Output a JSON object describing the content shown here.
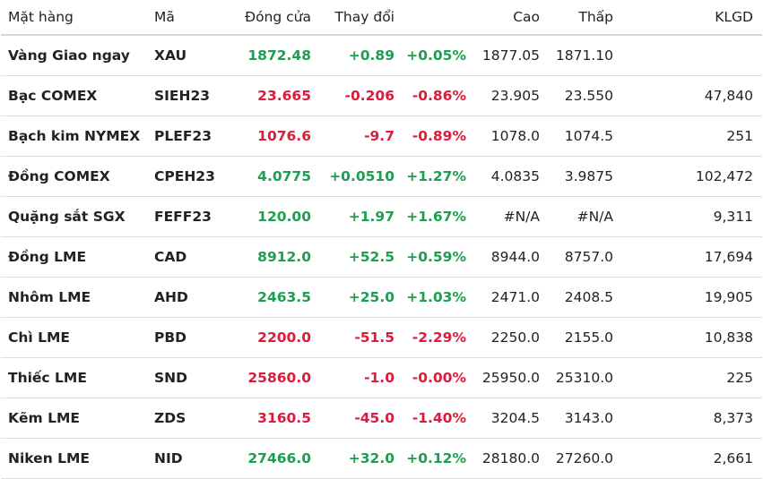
{
  "colors": {
    "up": "#1e9e50",
    "down": "#dc1c3a",
    "text": "#222222"
  },
  "headers": [
    "Mặt hàng",
    "Mã",
    "Đóng cửa",
    "Thay đổi",
    "",
    "Cao",
    "Thấp",
    "KLGD"
  ],
  "rows": [
    {
      "name": "Vàng Giao ngay",
      "code": "XAU",
      "close": "1872.48",
      "change": "+0.89",
      "pct": "+0.05%",
      "high": "1877.05",
      "low": "1871.10",
      "volume": "",
      "dir": "up"
    },
    {
      "name": "Bạc COMEX",
      "code": "SIEH23",
      "close": "23.665",
      "change": "-0.206",
      "pct": "-0.86%",
      "high": "23.905",
      "low": "23.550",
      "volume": "47,840",
      "dir": "down"
    },
    {
      "name": "Bạch kim NYMEX",
      "code": "PLEF23",
      "close": "1076.6",
      "change": "-9.7",
      "pct": "-0.89%",
      "high": "1078.0",
      "low": "1074.5",
      "volume": "251",
      "dir": "down"
    },
    {
      "name": "Đồng COMEX",
      "code": "CPEH23",
      "close": "4.0775",
      "change": "+0.0510",
      "pct": "+1.27%",
      "high": "4.0835",
      "low": "3.9875",
      "volume": "102,472",
      "dir": "up"
    },
    {
      "name": "Quặng sắt SGX",
      "code": "FEFF23",
      "close": "120.00",
      "change": "+1.97",
      "pct": "+1.67%",
      "high": "#N/A",
      "low": "#N/A",
      "volume": "9,311",
      "dir": "up"
    },
    {
      "name": "Đồng LME",
      "code": "CAD",
      "close": "8912.0",
      "change": "+52.5",
      "pct": "+0.59%",
      "high": "8944.0",
      "low": "8757.0",
      "volume": "17,694",
      "dir": "up"
    },
    {
      "name": "Nhôm LME",
      "code": "AHD",
      "close": "2463.5",
      "change": "+25.0",
      "pct": "+1.03%",
      "high": "2471.0",
      "low": "2408.5",
      "volume": "19,905",
      "dir": "up"
    },
    {
      "name": "Chì LME",
      "code": "PBD",
      "close": "2200.0",
      "change": "-51.5",
      "pct": "-2.29%",
      "high": "2250.0",
      "low": "2155.0",
      "volume": "10,838",
      "dir": "down"
    },
    {
      "name": "Thiếc LME",
      "code": "SND",
      "close": "25860.0",
      "change": "-1.0",
      "pct": "-0.00%",
      "high": "25950.0",
      "low": "25310.0",
      "volume": "225",
      "dir": "down"
    },
    {
      "name": "Kẽm LME",
      "code": "ZDS",
      "close": "3160.5",
      "change": "-45.0",
      "pct": "-1.40%",
      "high": "3204.5",
      "low": "3143.0",
      "volume": "8,373",
      "dir": "down"
    },
    {
      "name": "Niken LME",
      "code": "NID",
      "close": "27466.0",
      "change": "+32.0",
      "pct": "+0.12%",
      "high": "28180.0",
      "low": "27260.0",
      "volume": "2,661",
      "dir": "up"
    }
  ]
}
